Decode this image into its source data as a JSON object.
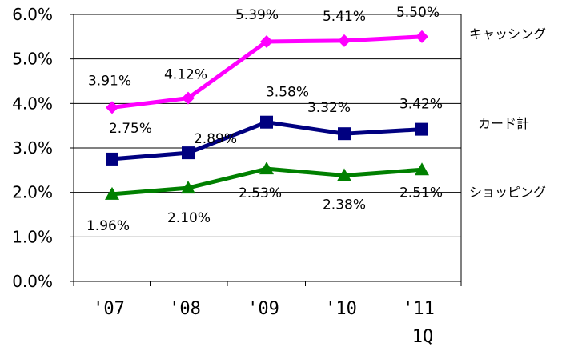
{
  "chart_data": {
    "type": "line",
    "title": "",
    "xlabel": "",
    "ylabel": "",
    "categories": [
      "'07",
      "'08",
      "'09",
      "'10",
      "'11"
    ],
    "category_sublabels": [
      "",
      "",
      "",
      "",
      "1Q"
    ],
    "ylim": [
      0,
      6
    ],
    "yticks": [
      "0.0%",
      "1.0%",
      "2.0%",
      "3.0%",
      "4.0%",
      "5.0%",
      "6.0%"
    ],
    "grid": true,
    "series": [
      {
        "name": "キャッシング",
        "color": "#FF00FF",
        "marker": "diamond",
        "values": [
          3.91,
          4.12,
          5.39,
          5.41,
          5.5
        ],
        "labels": [
          "3.91%",
          "4.12%",
          "5.39%",
          "5.41%",
          "5.50%"
        ]
      },
      {
        "name": "カード計",
        "color": "#000080",
        "marker": "square",
        "values": [
          2.75,
          2.89,
          3.58,
          3.32,
          3.42
        ],
        "labels": [
          "2.75%",
          "2.89%",
          "3.58%",
          "3.32%",
          "3.42%"
        ]
      },
      {
        "name": "ショッピング",
        "color": "#008000",
        "marker": "triangle",
        "values": [
          1.96,
          2.1,
          2.53,
          2.38,
          2.51
        ],
        "labels": [
          "1.96%",
          "2.10%",
          "2.53%",
          "2.38%",
          "2.51%"
        ]
      }
    ]
  }
}
